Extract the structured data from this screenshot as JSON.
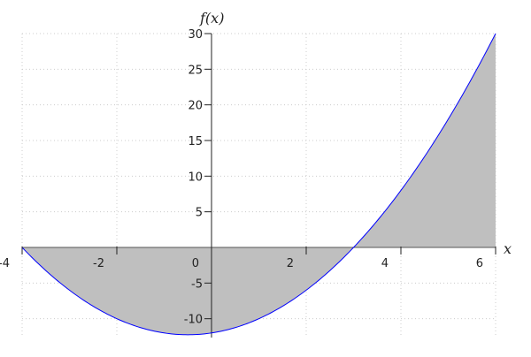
{
  "chart_data": {
    "type": "area",
    "function": "x^2 + x - 12",
    "xlabel": "x",
    "ylabel": "f(x)",
    "xlim": [
      -4,
      6
    ],
    "ylim": [
      -12.25,
      30
    ],
    "grid": true,
    "fill_color": "#bfbfbf",
    "line_color": "#0000ff",
    "x_ticks": [
      -4,
      -2,
      0,
      2,
      4,
      6
    ],
    "x_tick_labels": [
      "-4",
      "-2",
      "0",
      "2",
      "4",
      "6"
    ],
    "y_ticks": [
      -10,
      -5,
      5,
      10,
      15,
      20,
      25,
      30
    ],
    "y_tick_labels": [
      "-10",
      "-5",
      "5",
      "10",
      "15",
      "20",
      "25",
      "30"
    ],
    "key_points": [
      {
        "x": -4,
        "y": 0
      },
      {
        "x": -0.5,
        "y": -12.25
      },
      {
        "x": 3,
        "y": 0
      },
      {
        "x": 6,
        "y": 30
      }
    ]
  }
}
